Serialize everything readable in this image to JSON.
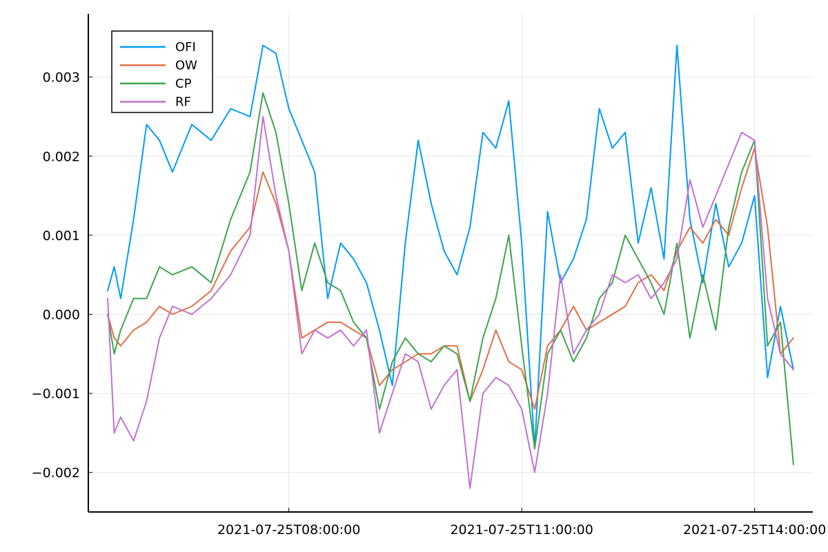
{
  "chart_data": {
    "type": "line",
    "title": "",
    "xlabel": "",
    "ylabel": "",
    "x_tick_labels": [
      "2021-07-25T08:00:00",
      "2021-07-25T11:00:00",
      "2021-07-25T14:00:00"
    ],
    "y_tick_labels": [
      "−0.002",
      "−0.001",
      "0.000",
      "0.001",
      "0.002",
      "0.003"
    ],
    "y_ticks": [
      -0.002,
      -0.001,
      0.0,
      0.001,
      0.002,
      0.003
    ],
    "xlim": [
      "2021-07-25T05:25:00",
      "2021-07-25T14:45:00"
    ],
    "ylim": [
      -0.0025,
      0.0038
    ],
    "grid": true,
    "legend_position": "top-left",
    "series": [
      {
        "name": "OFI",
        "color": "#009af9",
        "x": [
          "2021-07-25T05:40:00",
          "2021-07-25T05:45:00",
          "2021-07-25T05:50:00",
          "2021-07-25T06:00:00",
          "2021-07-25T06:10:00",
          "2021-07-25T06:20:00",
          "2021-07-25T06:30:00",
          "2021-07-25T06:45:00",
          "2021-07-25T07:00:00",
          "2021-07-25T07:15:00",
          "2021-07-25T07:30:00",
          "2021-07-25T07:40:00",
          "2021-07-25T07:50:00",
          "2021-07-25T08:00:00",
          "2021-07-25T08:10:00",
          "2021-07-25T08:20:00",
          "2021-07-25T08:30:00",
          "2021-07-25T08:40:00",
          "2021-07-25T08:50:00",
          "2021-07-25T09:00:00",
          "2021-07-25T09:10:00",
          "2021-07-25T09:20:00",
          "2021-07-25T09:30:00",
          "2021-07-25T09:40:00",
          "2021-07-25T09:50:00",
          "2021-07-25T10:00:00",
          "2021-07-25T10:10:00",
          "2021-07-25T10:20:00",
          "2021-07-25T10:30:00",
          "2021-07-25T10:40:00",
          "2021-07-25T10:50:00",
          "2021-07-25T11:00:00",
          "2021-07-25T11:10:00",
          "2021-07-25T11:20:00",
          "2021-07-25T11:30:00",
          "2021-07-25T11:40:00",
          "2021-07-25T11:50:00",
          "2021-07-25T12:00:00",
          "2021-07-25T12:10:00",
          "2021-07-25T12:20:00",
          "2021-07-25T12:30:00",
          "2021-07-25T12:40:00",
          "2021-07-25T12:50:00",
          "2021-07-25T13:00:00",
          "2021-07-25T13:10:00",
          "2021-07-25T13:20:00",
          "2021-07-25T13:30:00",
          "2021-07-25T13:40:00",
          "2021-07-25T13:50:00",
          "2021-07-25T14:00:00",
          "2021-07-25T14:10:00",
          "2021-07-25T14:20:00",
          "2021-07-25T14:30:00"
        ],
        "y": [
          0.0003,
          0.0006,
          0.0002,
          0.0012,
          0.0024,
          0.0022,
          0.0018,
          0.0024,
          0.0022,
          0.0026,
          0.0025,
          0.0034,
          0.0033,
          0.0026,
          0.0022,
          0.0018,
          0.0002,
          0.0009,
          0.0007,
          0.0004,
          -0.0002,
          -0.0009,
          0.0009,
          0.0022,
          0.0014,
          0.0008,
          0.0005,
          0.0011,
          0.0023,
          0.0021,
          0.0027,
          0.0009,
          -0.0017,
          0.0013,
          0.0004,
          0.0007,
          0.0012,
          0.0026,
          0.0021,
          0.0023,
          0.0009,
          0.0016,
          0.0007,
          0.0034,
          0.0012,
          0.0004,
          0.0014,
          0.0006,
          0.0009,
          0.0015,
          -0.0008,
          0.0001,
          -0.0007
        ]
      },
      {
        "name": "OW",
        "color": "#e26f46",
        "x": [
          "2021-07-25T05:40:00",
          "2021-07-25T05:45:00",
          "2021-07-25T05:50:00",
          "2021-07-25T06:00:00",
          "2021-07-25T06:10:00",
          "2021-07-25T06:20:00",
          "2021-07-25T06:30:00",
          "2021-07-25T06:45:00",
          "2021-07-25T07:00:00",
          "2021-07-25T07:15:00",
          "2021-07-25T07:30:00",
          "2021-07-25T07:40:00",
          "2021-07-25T07:50:00",
          "2021-07-25T08:00:00",
          "2021-07-25T08:10:00",
          "2021-07-25T08:20:00",
          "2021-07-25T08:30:00",
          "2021-07-25T08:40:00",
          "2021-07-25T08:50:00",
          "2021-07-25T09:00:00",
          "2021-07-25T09:10:00",
          "2021-07-25T09:20:00",
          "2021-07-25T09:30:00",
          "2021-07-25T09:40:00",
          "2021-07-25T09:50:00",
          "2021-07-25T10:00:00",
          "2021-07-25T10:10:00",
          "2021-07-25T10:20:00",
          "2021-07-25T10:30:00",
          "2021-07-25T10:40:00",
          "2021-07-25T10:50:00",
          "2021-07-25T11:00:00",
          "2021-07-25T11:10:00",
          "2021-07-25T11:20:00",
          "2021-07-25T11:30:00",
          "2021-07-25T11:40:00",
          "2021-07-25T11:50:00",
          "2021-07-25T12:00:00",
          "2021-07-25T12:10:00",
          "2021-07-25T12:20:00",
          "2021-07-25T12:30:00",
          "2021-07-25T12:40:00",
          "2021-07-25T12:50:00",
          "2021-07-25T13:00:00",
          "2021-07-25T13:10:00",
          "2021-07-25T13:20:00",
          "2021-07-25T13:30:00",
          "2021-07-25T13:40:00",
          "2021-07-25T13:50:00",
          "2021-07-25T14:00:00",
          "2021-07-25T14:10:00",
          "2021-07-25T14:20:00",
          "2021-07-25T14:30:00"
        ],
        "y": [
          0.0,
          -0.0003,
          -0.0004,
          -0.0002,
          -0.0001,
          0.0001,
          0.0,
          0.0001,
          0.0003,
          0.0008,
          0.0011,
          0.0018,
          0.0014,
          0.0008,
          -0.0003,
          -0.0002,
          -0.0001,
          -0.0001,
          -0.0002,
          -0.0003,
          -0.0009,
          -0.0007,
          -0.0006,
          -0.0005,
          -0.0005,
          -0.0004,
          -0.0004,
          -0.0011,
          -0.0007,
          -0.0002,
          -0.0006,
          -0.0007,
          -0.0012,
          -0.0004,
          -0.0002,
          0.0001,
          -0.0002,
          -0.0001,
          0.0,
          0.0001,
          0.0004,
          0.0005,
          0.0003,
          0.0008,
          0.0011,
          0.0009,
          0.0012,
          0.001,
          0.0016,
          0.0021,
          0.0011,
          -0.0005,
          -0.0003
        ]
      },
      {
        "name": "CP",
        "color": "#3da44d",
        "x": [
          "2021-07-25T05:40:00",
          "2021-07-25T05:45:00",
          "2021-07-25T05:50:00",
          "2021-07-25T06:00:00",
          "2021-07-25T06:10:00",
          "2021-07-25T06:20:00",
          "2021-07-25T06:30:00",
          "2021-07-25T06:45:00",
          "2021-07-25T07:00:00",
          "2021-07-25T07:15:00",
          "2021-07-25T07:30:00",
          "2021-07-25T07:40:00",
          "2021-07-25T07:50:00",
          "2021-07-25T08:00:00",
          "2021-07-25T08:10:00",
          "2021-07-25T08:20:00",
          "2021-07-25T08:30:00",
          "2021-07-25T08:40:00",
          "2021-07-25T08:50:00",
          "2021-07-25T09:00:00",
          "2021-07-25T09:10:00",
          "2021-07-25T09:20:00",
          "2021-07-25T09:30:00",
          "2021-07-25T09:40:00",
          "2021-07-25T09:50:00",
          "2021-07-25T10:00:00",
          "2021-07-25T10:10:00",
          "2021-07-25T10:20:00",
          "2021-07-25T10:30:00",
          "2021-07-25T10:40:00",
          "2021-07-25T10:50:00",
          "2021-07-25T11:00:00",
          "2021-07-25T11:10:00",
          "2021-07-25T11:20:00",
          "2021-07-25T11:30:00",
          "2021-07-25T11:40:00",
          "2021-07-25T11:50:00",
          "2021-07-25T12:00:00",
          "2021-07-25T12:10:00",
          "2021-07-25T12:20:00",
          "2021-07-25T12:30:00",
          "2021-07-25T12:40:00",
          "2021-07-25T12:50:00",
          "2021-07-25T13:00:00",
          "2021-07-25T13:10:00",
          "2021-07-25T13:20:00",
          "2021-07-25T13:30:00",
          "2021-07-25T13:40:00",
          "2021-07-25T13:50:00",
          "2021-07-25T14:00:00",
          "2021-07-25T14:10:00",
          "2021-07-25T14:20:00",
          "2021-07-25T14:30:00"
        ],
        "y": [
          0.0,
          -0.0005,
          -0.0002,
          0.0002,
          0.0002,
          0.0006,
          0.0005,
          0.0006,
          0.0004,
          0.0012,
          0.0018,
          0.0028,
          0.0023,
          0.0014,
          0.0003,
          0.0009,
          0.0004,
          0.0003,
          -0.0001,
          -0.0003,
          -0.0012,
          -0.0006,
          -0.0003,
          -0.0005,
          -0.0006,
          -0.0004,
          -0.0005,
          -0.0011,
          -0.0003,
          0.0002,
          0.001,
          -0.0004,
          -0.0017,
          -0.0005,
          -0.0002,
          -0.0006,
          -0.0003,
          0.0002,
          0.0004,
          0.001,
          0.0007,
          0.0004,
          0.0,
          0.0009,
          -0.0003,
          0.0005,
          -0.0002,
          0.0011,
          0.0018,
          0.0022,
          -0.0004,
          -0.0001,
          -0.0019
        ]
      },
      {
        "name": "RF",
        "color": "#c271d2",
        "x": [
          "2021-07-25T05:40:00",
          "2021-07-25T05:45:00",
          "2021-07-25T05:50:00",
          "2021-07-25T06:00:00",
          "2021-07-25T06:10:00",
          "2021-07-25T06:20:00",
          "2021-07-25T06:30:00",
          "2021-07-25T06:45:00",
          "2021-07-25T07:00:00",
          "2021-07-25T07:15:00",
          "2021-07-25T07:30:00",
          "2021-07-25T07:40:00",
          "2021-07-25T07:50:00",
          "2021-07-25T08:00:00",
          "2021-07-25T08:10:00",
          "2021-07-25T08:20:00",
          "2021-07-25T08:30:00",
          "2021-07-25T08:40:00",
          "2021-07-25T08:50:00",
          "2021-07-25T09:00:00",
          "2021-07-25T09:10:00",
          "2021-07-25T09:20:00",
          "2021-07-25T09:30:00",
          "2021-07-25T09:40:00",
          "2021-07-25T09:50:00",
          "2021-07-25T10:00:00",
          "2021-07-25T10:10:00",
          "2021-07-25T10:20:00",
          "2021-07-25T10:30:00",
          "2021-07-25T10:40:00",
          "2021-07-25T10:50:00",
          "2021-07-25T11:00:00",
          "2021-07-25T11:10:00",
          "2021-07-25T11:20:00",
          "2021-07-25T11:30:00",
          "2021-07-25T11:40:00",
          "2021-07-25T11:50:00",
          "2021-07-25T12:00:00",
          "2021-07-25T12:10:00",
          "2021-07-25T12:20:00",
          "2021-07-25T12:30:00",
          "2021-07-25T12:40:00",
          "2021-07-25T12:50:00",
          "2021-07-25T13:00:00",
          "2021-07-25T13:10:00",
          "2021-07-25T13:20:00",
          "2021-07-25T13:30:00",
          "2021-07-25T13:40:00",
          "2021-07-25T13:50:00",
          "2021-07-25T14:00:00",
          "2021-07-25T14:10:00",
          "2021-07-25T14:20:00",
          "2021-07-25T14:30:00"
        ],
        "y": [
          0.0002,
          -0.0015,
          -0.0013,
          -0.0016,
          -0.0011,
          -0.0003,
          0.0001,
          0.0,
          0.0002,
          0.0005,
          0.001,
          0.0025,
          0.0015,
          0.0008,
          -0.0005,
          -0.0002,
          -0.0003,
          -0.0002,
          -0.0004,
          -0.0002,
          -0.0015,
          -0.001,
          -0.0005,
          -0.0006,
          -0.0012,
          -0.0009,
          -0.0007,
          -0.0022,
          -0.001,
          -0.0008,
          -0.0009,
          -0.0012,
          -0.002,
          -0.001,
          0.0005,
          -0.0005,
          -0.0002,
          0.0,
          0.0005,
          0.0004,
          0.0005,
          0.0002,
          0.0004,
          0.0007,
          0.0017,
          0.0011,
          0.0015,
          0.0019,
          0.0023,
          0.0022,
          0.0002,
          -0.0005,
          -0.0007
        ]
      }
    ]
  }
}
